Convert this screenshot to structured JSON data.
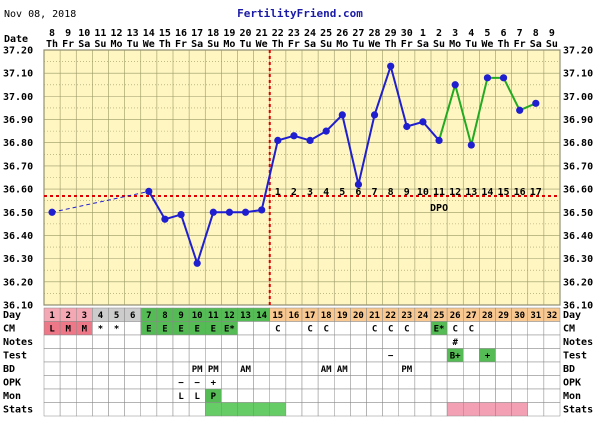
{
  "header": {
    "date": "Nov 08, 2018",
    "site": "FertilityFriend.com"
  },
  "row_labels": {
    "date": "Date",
    "day": "Day",
    "cm": "CM",
    "notes": "Notes",
    "test": "Test",
    "bd": "BD",
    "opk": "OPK",
    "mon": "Mon",
    "stats": "Stats"
  },
  "dpo_label": "DPO",
  "colors": {
    "plot_bg": "#fff6c2",
    "grid": "#999966",
    "pre_line": "#1f1fcf",
    "post_line": "#22aa22",
    "point": "#1f1fcf",
    "coverline": "#dd0000",
    "cycle_day_pink": "#f4a8b4",
    "cycle_day_grey": "#cccccc",
    "cycle_day_green": "#55bb55",
    "cycle_day_orange": "#f8c890",
    "cm_menses": "#ee7788",
    "cm_fertile": "#55bb55",
    "stats_green": "#66cc66",
    "stats_pink": "#f4a0b4"
  },
  "chart_data": {
    "type": "line",
    "ylim": [
      36.1,
      37.2
    ],
    "yticks": [
      "36.10",
      "36.20",
      "36.30",
      "36.40",
      "36.50",
      "36.60",
      "36.70",
      "36.80",
      "36.90",
      "37.00",
      "37.10",
      "37.20"
    ],
    "dates": [
      "8",
      "9",
      "10",
      "11",
      "12",
      "13",
      "14",
      "15",
      "16",
      "17",
      "18",
      "19",
      "20",
      "21",
      "22",
      "23",
      "24",
      "25",
      "26",
      "27",
      "28",
      "29",
      "30",
      "1",
      "2",
      "3",
      "4",
      "5",
      "6",
      "7",
      "8",
      "9"
    ],
    "weekdays": [
      "Th",
      "Fr",
      "Sa",
      "Su",
      "Mo",
      "Tu",
      "We",
      "Th",
      "Fr",
      "Sa",
      "Su",
      "Mo",
      "Tu",
      "We",
      "Th",
      "Fr",
      "Sa",
      "Su",
      "Mo",
      "Tu",
      "We",
      "Th",
      "Fr",
      "Sa",
      "Su",
      "Mo",
      "Tu",
      "We",
      "Th",
      "Fr",
      "Sa",
      "Su"
    ],
    "cycle_days": [
      "1",
      "2",
      "3",
      "4",
      "5",
      "6",
      "7",
      "8",
      "9",
      "10",
      "11",
      "12",
      "13",
      "14",
      "15",
      "16",
      "17",
      "18",
      "19",
      "20",
      "21",
      "22",
      "23",
      "24",
      "25",
      "26",
      "27",
      "28",
      "29",
      "30",
      "31",
      "32"
    ],
    "temps": [
      36.5,
      null,
      null,
      null,
      null,
      null,
      36.59,
      36.47,
      36.49,
      36.28,
      36.5,
      36.5,
      36.5,
      36.51,
      36.81,
      36.83,
      36.81,
      36.85,
      36.92,
      36.62,
      36.92,
      37.13,
      36.87,
      36.89,
      36.81,
      37.05,
      36.79,
      37.08,
      37.08,
      36.94,
      36.97,
      null
    ],
    "segments": [
      {
        "style": "dashed",
        "from": 1,
        "to": 7
      },
      {
        "style": "solid",
        "color": "pre",
        "from": 7,
        "to": 25
      },
      {
        "style": "solid",
        "color": "post",
        "from": 25,
        "to": 31
      }
    ],
    "coverline": 36.57,
    "ovulation_day": 14,
    "dpo": [
      "1",
      "2",
      "3",
      "4",
      "5",
      "6",
      "7",
      "8",
      "9",
      "10",
      "11",
      "12",
      "13",
      "14",
      "15",
      "16",
      "17"
    ],
    "cm": [
      "L",
      "M",
      "M",
      "*",
      "*",
      "",
      "E",
      "E",
      "E",
      "E",
      "E",
      "E*",
      "",
      "",
      "C",
      "",
      "C",
      "C",
      "",
      "",
      "C",
      "C",
      "C",
      "",
      "E*",
      "C",
      "C",
      "",
      "",
      "",
      "",
      ""
    ],
    "notes": [
      "",
      "",
      "",
      "",
      "",
      "",
      "",
      "",
      "",
      "",
      "",
      "",
      "",
      "",
      "",
      "",
      "",
      "",
      "",
      "",
      "",
      "",
      "",
      "",
      "",
      "#",
      "",
      "",
      "",
      "",
      "",
      ""
    ],
    "test": [
      "",
      "",
      "",
      "",
      "",
      "",
      "",
      "",
      "",
      "",
      "",
      "",
      "",
      "",
      "",
      "",
      "",
      "",
      "",
      "",
      "",
      "−",
      "",
      "",
      "",
      "B+",
      "",
      "+",
      "",
      "",
      "",
      ""
    ],
    "bd": [
      "",
      "",
      "",
      "",
      "",
      "",
      "",
      "",
      "",
      "PM",
      "PM",
      "",
      "AM",
      "",
      "",
      "",
      "",
      "AM",
      "AM",
      "",
      "",
      "",
      "PM",
      "",
      "",
      "",
      "",
      "",
      "",
      "",
      "",
      ""
    ],
    "opk": [
      "",
      "",
      "",
      "",
      "",
      "",
      "",
      "",
      "−",
      "−",
      "+",
      "",
      "",
      "",
      "",
      "",
      "",
      "",
      "",
      "",
      "",
      "",
      "",
      "",
      "",
      "",
      "",
      "",
      "",
      "",
      "",
      ""
    ],
    "mon": [
      "",
      "",
      "",
      "",
      "",
      "",
      "",
      "",
      "L",
      "L",
      "P",
      "",
      "",
      "",
      "",
      "",
      "",
      "",
      "",
      "",
      "",
      "",
      "",
      "",
      "",
      "",
      "",
      "",
      "",
      "",
      "",
      ""
    ],
    "stats_green_days": [
      11,
      15
    ],
    "stats_pink_days": [
      26,
      30
    ]
  }
}
